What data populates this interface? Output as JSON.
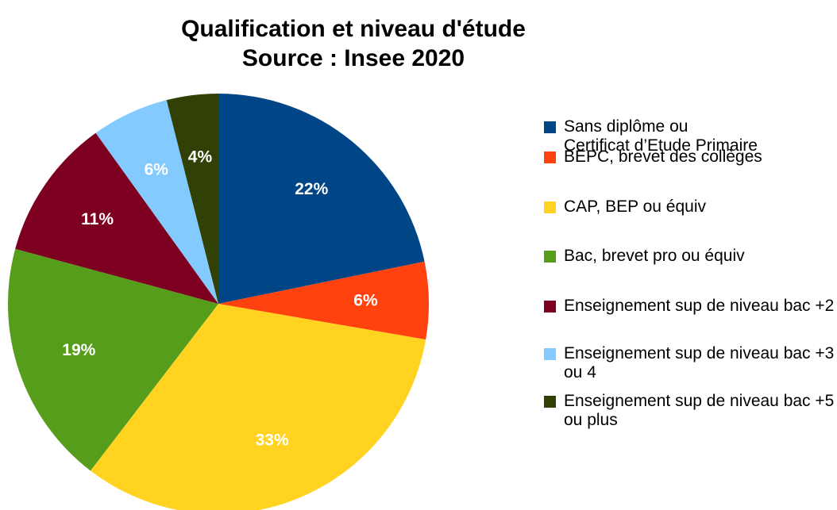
{
  "chart_data": {
    "type": "pie",
    "title": "Qualification et niveau d'étude",
    "subtitle": "Source : Insee 2020",
    "categories": [
      "Sans diplôme ou\nCertificat d’Etude Primaire",
      "BEPC, brevet des collèges",
      "CAP, BEP ou équiv",
      "Bac, brevet pro ou équiv",
      "Enseignement sup de niveau bac +2",
      "Enseignement sup de niveau bac +3 ou 4",
      "Enseignement sup de niveau bac +5 ou plus"
    ],
    "values": [
      22,
      6,
      33,
      19,
      11,
      6,
      4
    ],
    "value_labels": [
      "22%",
      "6%",
      "33%",
      "19%",
      "11%",
      "6%",
      "4%"
    ],
    "colors": [
      "#004586",
      "#ff420e",
      "#ffd320",
      "#579d1c",
      "#7e0021",
      "#83caff",
      "#314004"
    ],
    "legend": "right"
  }
}
